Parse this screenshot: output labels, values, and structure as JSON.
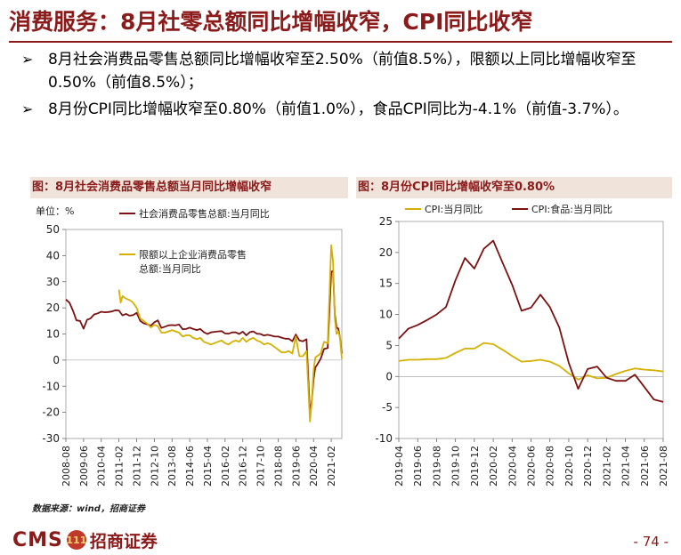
{
  "page": {
    "title": "消费服务：8月社零总额同比增幅收窄，CPI同比收窄",
    "bullets": [
      "8月社会消费品零售总额同比增幅收窄至2.50%（前值8.5%），限额以上同比增幅收窄至0.50%（前值8.5%）；",
      "8月份CPI同比增幅收窄至0.80%（前值1.0%），食品CPI同比为-4.1%（前值-3.7%）。"
    ],
    "bullet_mark": "➢",
    "source": "数据来源：wind，招商证券",
    "logo": {
      "cms": "CMS",
      "badge": "111",
      "name": "招商证券"
    },
    "page_number": "- 74 -"
  },
  "colors": {
    "accent": "#8B1A1A",
    "series_dark": "#7B1111",
    "series_gold": "#D4B000",
    "panel_header_bg": "#f0e3da"
  },
  "chart_data": [
    {
      "type": "line",
      "title": "图：8月社会消费品零售总额当月同比增幅收窄",
      "unit_label": "单位：%",
      "ylim": [
        -30,
        50
      ],
      "yticks": [
        -30,
        -20,
        -10,
        0,
        10,
        20,
        30,
        40,
        50
      ],
      "xlim": [
        "2008-08",
        "2021-08"
      ],
      "xticks": [
        "2008-08",
        "2009-06",
        "2010-04",
        "2011-02",
        "2011-12",
        "2012-10",
        "2013-08",
        "2014-06",
        "2015-04",
        "2016-02",
        "2016-12",
        "2017-10",
        "2018-08",
        "2019-06",
        "2020-04",
        "2021-02"
      ],
      "grid": false,
      "legend": "top",
      "series": [
        {
          "name": "社会消费品零售总额:当月同比",
          "color": "#7B1111",
          "points": [
            [
              "2008-08",
              23.2
            ],
            [
              "2008-10",
              22.0
            ],
            [
              "2008-12",
              19.0
            ],
            [
              "2009-02",
              15.2
            ],
            [
              "2009-04",
              15.0
            ],
            [
              "2009-06",
              12.0
            ],
            [
              "2009-08",
              15.4
            ],
            [
              "2009-10",
              16.0
            ],
            [
              "2009-12",
              17.5
            ],
            [
              "2010-02",
              17.9
            ],
            [
              "2010-04",
              18.5
            ],
            [
              "2010-06",
              18.3
            ],
            [
              "2010-08",
              18.4
            ],
            [
              "2010-10",
              18.6
            ],
            [
              "2010-12",
              19.1
            ],
            [
              "2011-02",
              19.0
            ],
            [
              "2011-04",
              17.1
            ],
            [
              "2011-06",
              17.7
            ],
            [
              "2011-08",
              17.0
            ],
            [
              "2011-10",
              17.2
            ],
            [
              "2011-12",
              18.1
            ],
            [
              "2012-02",
              15.0
            ],
            [
              "2012-04",
              14.1
            ],
            [
              "2012-06",
              13.7
            ],
            [
              "2012-08",
              13.2
            ],
            [
              "2012-10",
              14.5
            ],
            [
              "2012-12",
              15.2
            ],
            [
              "2013-02",
              12.3
            ],
            [
              "2013-04",
              12.8
            ],
            [
              "2013-06",
              13.3
            ],
            [
              "2013-08",
              13.4
            ],
            [
              "2013-10",
              13.3
            ],
            [
              "2013-12",
              13.6
            ],
            [
              "2014-02",
              11.8
            ],
            [
              "2014-04",
              11.9
            ],
            [
              "2014-06",
              12.4
            ],
            [
              "2014-08",
              11.9
            ],
            [
              "2014-10",
              11.5
            ],
            [
              "2014-12",
              11.9
            ],
            [
              "2015-02",
              10.7
            ],
            [
              "2015-04",
              10.0
            ],
            [
              "2015-06",
              10.6
            ],
            [
              "2015-08",
              10.8
            ],
            [
              "2015-10",
              11.0
            ],
            [
              "2015-12",
              11.1
            ],
            [
              "2016-02",
              10.2
            ],
            [
              "2016-04",
              10.1
            ],
            [
              "2016-06",
              10.6
            ],
            [
              "2016-08",
              10.6
            ],
            [
              "2016-10",
              10.0
            ],
            [
              "2016-12",
              10.9
            ],
            [
              "2017-02",
              9.5
            ],
            [
              "2017-04",
              10.7
            ],
            [
              "2017-06",
              11.0
            ],
            [
              "2017-08",
              10.1
            ],
            [
              "2017-10",
              10.0
            ],
            [
              "2017-12",
              9.4
            ],
            [
              "2018-02",
              9.7
            ],
            [
              "2018-04",
              9.4
            ],
            [
              "2018-06",
              9.0
            ],
            [
              "2018-08",
              9.0
            ],
            [
              "2018-10",
              8.6
            ],
            [
              "2018-12",
              8.2
            ],
            [
              "2019-02",
              8.2
            ],
            [
              "2019-04",
              7.2
            ],
            [
              "2019-06",
              9.8
            ],
            [
              "2019-08",
              7.5
            ],
            [
              "2019-10",
              7.2
            ],
            [
              "2019-12",
              8.0
            ],
            [
              "2020-02",
              -20.5
            ],
            [
              "2020-03",
              -15.8
            ],
            [
              "2020-04",
              -7.5
            ],
            [
              "2020-05",
              -2.8
            ],
            [
              "2020-06",
              -1.8
            ],
            [
              "2020-08",
              0.5
            ],
            [
              "2020-10",
              4.3
            ],
            [
              "2020-12",
              4.6
            ],
            [
              "2021-02",
              33.8
            ],
            [
              "2021-03",
              34.2
            ],
            [
              "2021-04",
              17.7
            ],
            [
              "2021-05",
              12.4
            ],
            [
              "2021-06",
              12.1
            ],
            [
              "2021-07",
              8.5
            ],
            [
              "2021-08",
              2.5
            ]
          ]
        },
        {
          "name": "限额以上企业消费品零售总额:当月同比",
          "color": "#D4B000",
          "points": [
            [
              "2011-02",
              27.0
            ],
            [
              "2011-03",
              22.0
            ],
            [
              "2011-04",
              24.5
            ],
            [
              "2011-06",
              23.5
            ],
            [
              "2011-08",
              23.0
            ],
            [
              "2011-10",
              22.0
            ],
            [
              "2011-12",
              20.0
            ],
            [
              "2012-02",
              16.0
            ],
            [
              "2012-04",
              15.0
            ],
            [
              "2012-06",
              14.0
            ],
            [
              "2012-08",
              12.5
            ],
            [
              "2012-10",
              13.5
            ],
            [
              "2012-12",
              13.0
            ],
            [
              "2013-02",
              10.5
            ],
            [
              "2013-04",
              10.5
            ],
            [
              "2013-06",
              11.0
            ],
            [
              "2013-08",
              11.5
            ],
            [
              "2013-10",
              11.0
            ],
            [
              "2013-12",
              10.5
            ],
            [
              "2014-02",
              9.0
            ],
            [
              "2014-04",
              9.5
            ],
            [
              "2014-06",
              9.5
            ],
            [
              "2014-08",
              8.5
            ],
            [
              "2014-10",
              8.0
            ],
            [
              "2014-12",
              8.5
            ],
            [
              "2015-02",
              7.0
            ],
            [
              "2015-04",
              6.5
            ],
            [
              "2015-06",
              6.0
            ],
            [
              "2015-08",
              6.5
            ],
            [
              "2015-10",
              7.0
            ],
            [
              "2015-12",
              7.5
            ],
            [
              "2016-02",
              6.5
            ],
            [
              "2016-04",
              6.0
            ],
            [
              "2016-06",
              7.0
            ],
            [
              "2016-08",
              7.5
            ],
            [
              "2016-10",
              7.0
            ],
            [
              "2016-12",
              8.5
            ],
            [
              "2017-02",
              7.0
            ],
            [
              "2017-04",
              8.0
            ],
            [
              "2017-06",
              8.5
            ],
            [
              "2017-08",
              7.5
            ],
            [
              "2017-10",
              7.0
            ],
            [
              "2017-12",
              6.0
            ],
            [
              "2018-02",
              6.5
            ],
            [
              "2018-04",
              6.0
            ],
            [
              "2018-06",
              5.0
            ],
            [
              "2018-08",
              4.0
            ],
            [
              "2018-10",
              3.0
            ],
            [
              "2018-12",
              3.0
            ],
            [
              "2019-02",
              3.5
            ],
            [
              "2019-04",
              2.5
            ],
            [
              "2019-06",
              9.0
            ],
            [
              "2019-08",
              1.5
            ],
            [
              "2019-10",
              1.5
            ],
            [
              "2019-12",
              3.5
            ],
            [
              "2020-02",
              -23.5
            ],
            [
              "2020-03",
              -16.0
            ],
            [
              "2020-04",
              -4.0
            ],
            [
              "2020-05",
              1.0
            ],
            [
              "2020-06",
              1.5
            ],
            [
              "2020-08",
              2.5
            ],
            [
              "2020-10",
              7.0
            ],
            [
              "2020-12",
              6.5
            ],
            [
              "2021-02",
              44.0
            ],
            [
              "2021-03",
              38.0
            ],
            [
              "2021-04",
              16.0
            ],
            [
              "2021-05",
              10.0
            ],
            [
              "2021-06",
              11.0
            ],
            [
              "2021-07",
              8.5
            ],
            [
              "2021-08",
              0.5
            ]
          ]
        }
      ]
    },
    {
      "type": "line",
      "title": "图：8月份CPI同比增幅收窄至0.80%",
      "ylim": [
        -10,
        25
      ],
      "yticks": [
        -10,
        -5,
        0,
        5,
        10,
        15,
        20,
        25
      ],
      "xlim": [
        "2019-04",
        "2021-08"
      ],
      "xticks": [
        "2019-04",
        "2019-06",
        "2019-08",
        "2019-10",
        "2019-12",
        "2020-02",
        "2020-04",
        "2020-06",
        "2020-08",
        "2020-10",
        "2020-12",
        "2021-02",
        "2021-04",
        "2021-06",
        "2021-08"
      ],
      "grid": false,
      "legend": "top",
      "series": [
        {
          "name": "CPI:当月同比",
          "color": "#D4B000",
          "points": [
            [
              "2019-04",
              2.5
            ],
            [
              "2019-05",
              2.7
            ],
            [
              "2019-06",
              2.7
            ],
            [
              "2019-07",
              2.8
            ],
            [
              "2019-08",
              2.8
            ],
            [
              "2019-09",
              3.0
            ],
            [
              "2019-10",
              3.8
            ],
            [
              "2019-11",
              4.5
            ],
            [
              "2019-12",
              4.5
            ],
            [
              "2020-01",
              5.4
            ],
            [
              "2020-02",
              5.2
            ],
            [
              "2020-03",
              4.3
            ],
            [
              "2020-04",
              3.3
            ],
            [
              "2020-05",
              2.4
            ],
            [
              "2020-06",
              2.5
            ],
            [
              "2020-07",
              2.7
            ],
            [
              "2020-08",
              2.4
            ],
            [
              "2020-09",
              1.7
            ],
            [
              "2020-10",
              0.5
            ],
            [
              "2020-11",
              -0.5
            ],
            [
              "2020-12",
              0.2
            ],
            [
              "2021-01",
              -0.3
            ],
            [
              "2021-02",
              -0.2
            ],
            [
              "2021-03",
              0.4
            ],
            [
              "2021-04",
              0.9
            ],
            [
              "2021-05",
              1.3
            ],
            [
              "2021-06",
              1.1
            ],
            [
              "2021-07",
              1.0
            ],
            [
              "2021-08",
              0.8
            ]
          ]
        },
        {
          "name": "CPI:食品:当月同比",
          "color": "#7B1111",
          "points": [
            [
              "2019-04",
              6.1
            ],
            [
              "2019-05",
              7.7
            ],
            [
              "2019-06",
              8.3
            ],
            [
              "2019-07",
              9.1
            ],
            [
              "2019-08",
              10.0
            ],
            [
              "2019-09",
              11.2
            ],
            [
              "2019-10",
              15.5
            ],
            [
              "2019-11",
              19.1
            ],
            [
              "2019-12",
              17.4
            ],
            [
              "2020-01",
              20.6
            ],
            [
              "2020-02",
              21.9
            ],
            [
              "2020-03",
              18.3
            ],
            [
              "2020-04",
              14.8
            ],
            [
              "2020-05",
              10.6
            ],
            [
              "2020-06",
              11.1
            ],
            [
              "2020-07",
              13.2
            ],
            [
              "2020-08",
              11.2
            ],
            [
              "2020-09",
              7.9
            ],
            [
              "2020-10",
              2.2
            ],
            [
              "2020-11",
              -2.0
            ],
            [
              "2020-12",
              1.2
            ],
            [
              "2021-01",
              1.6
            ],
            [
              "2021-02",
              -0.2
            ],
            [
              "2021-03",
              -0.7
            ],
            [
              "2021-04",
              -0.7
            ],
            [
              "2021-05",
              0.3
            ],
            [
              "2021-06",
              -1.7
            ],
            [
              "2021-07",
              -3.7
            ],
            [
              "2021-08",
              -4.1
            ]
          ]
        }
      ]
    }
  ]
}
